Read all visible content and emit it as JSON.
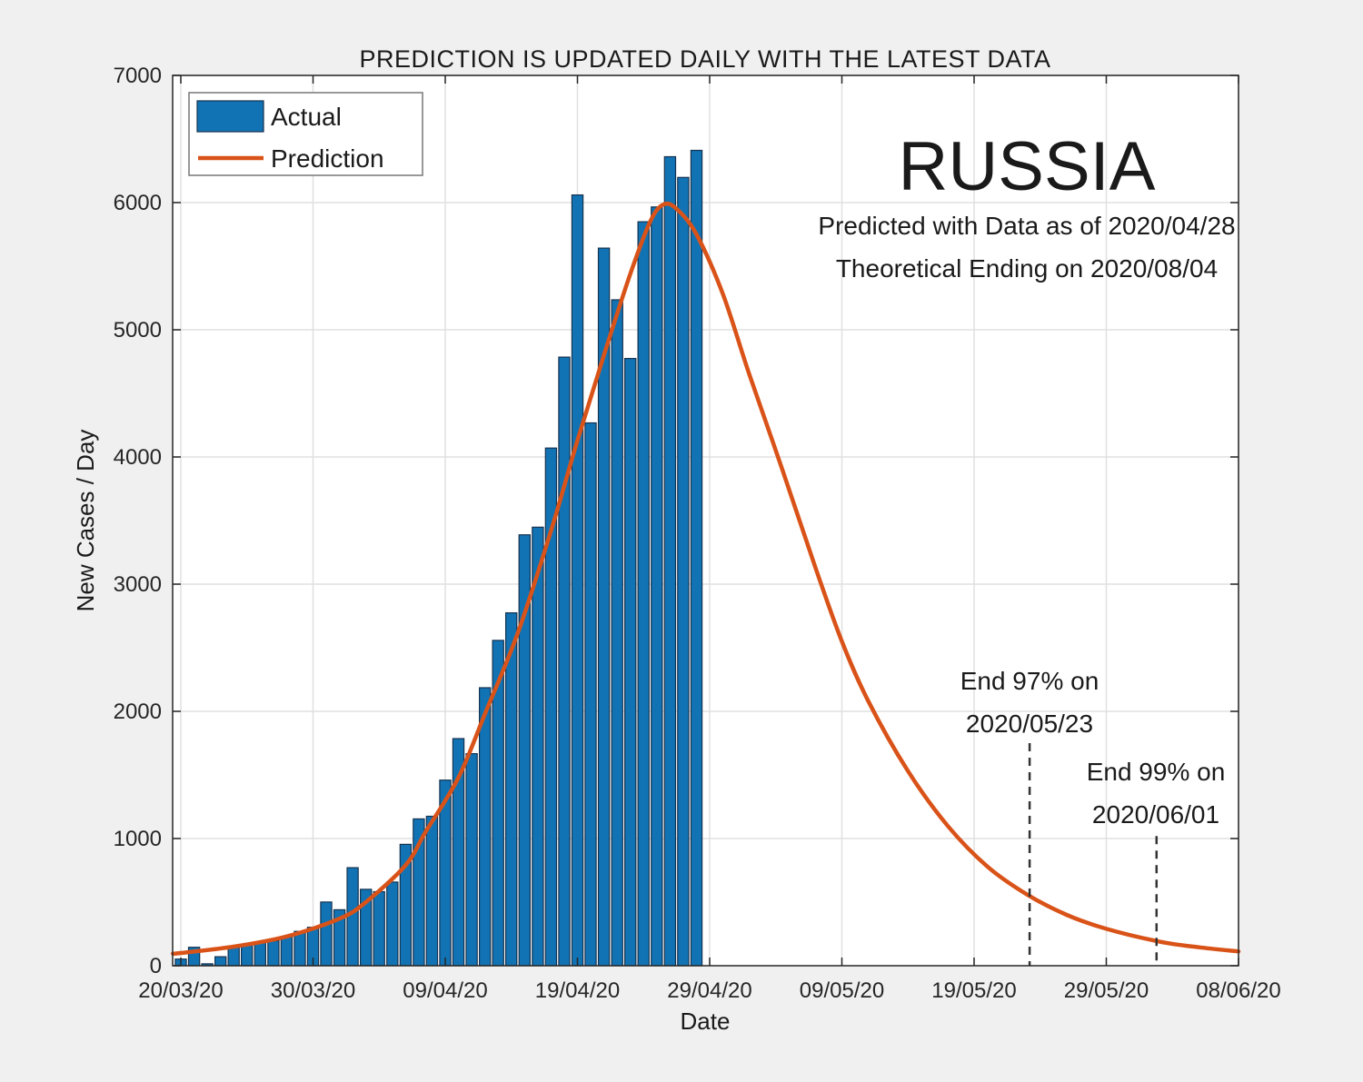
{
  "header": {
    "title": "PREDICTION IS UPDATED DAILY WITH THE LATEST DATA"
  },
  "country": {
    "name": "RUSSIA",
    "subtitle1": "Predicted with Data as of 2020/04/28",
    "subtitle2": "Theoretical Ending on 2020/08/04"
  },
  "legend": {
    "actual_label": "Actual",
    "prediction_label": "Prediction"
  },
  "axes": {
    "xlabel": "Date",
    "ylabel": "New Cases / Day",
    "x_tick_labels": [
      "20/03/20",
      "30/03/20",
      "09/04/20",
      "19/04/20",
      "29/04/20",
      "09/05/20",
      "19/05/20",
      "29/05/20",
      "08/06/20"
    ],
    "y_ticks": [
      0,
      1000,
      2000,
      3000,
      4000,
      5000,
      6000,
      7000
    ],
    "ylim": [
      0,
      7000
    ]
  },
  "annotations": [
    {
      "lines": [
        "End 97% on",
        "2020/05/23"
      ],
      "t_days": 64.2,
      "line_top_value": 1750
    },
    {
      "lines": [
        "End 99% on",
        "2020/06/01"
      ],
      "t_days": 73.8,
      "line_top_value": 1020
    }
  ],
  "colors": {
    "bar_fill": "#1173b4",
    "bar_edge": "#16324f",
    "prediction_line": "#d95319",
    "dashed_line": "#333333",
    "grid": "#e0e0e0",
    "axis": "#262626",
    "text": "#1a1a1a",
    "figure_bg": "#f0f0f0",
    "plot_bg": "#ffffff",
    "legend_border": "#777777"
  },
  "chart_data": {
    "type": "bar+line",
    "title": "PREDICTION IS UPDATED DAILY WITH THE LATEST DATA",
    "xlabel": "Date",
    "ylabel": "New Cases / Day",
    "ylim": [
      0,
      7000
    ],
    "x_range_dates": [
      "20/03/20",
      "08/06/20"
    ],
    "grid": true,
    "legend_position": "top-left",
    "bar_series": {
      "name": "Actual",
      "dates": [
        "20/03/20",
        "21/03/20",
        "22/03/20",
        "23/03/20",
        "24/03/20",
        "25/03/20",
        "26/03/20",
        "27/03/20",
        "28/03/20",
        "29/03/20",
        "30/03/20",
        "31/03/20",
        "01/04/20",
        "02/04/20",
        "03/04/20",
        "04/04/20",
        "05/04/20",
        "06/04/20",
        "07/04/20",
        "08/04/20",
        "09/04/20",
        "10/04/20",
        "11/04/20",
        "12/04/20",
        "13/04/20",
        "14/04/20",
        "15/04/20",
        "16/04/20",
        "17/04/20",
        "18/04/20",
        "19/04/20",
        "20/04/20",
        "21/04/20",
        "22/04/20",
        "23/04/20",
        "24/04/20",
        "25/04/20",
        "26/04/20",
        "27/04/20",
        "28/04/20"
      ],
      "values": [
        52,
        145,
        15,
        71,
        155,
        163,
        182,
        196,
        228,
        270,
        302,
        501,
        440,
        771,
        601,
        582,
        658,
        954,
        1154,
        1175,
        1459,
        1786,
        1667,
        2186,
        2558,
        2774,
        3388,
        3448,
        4070,
        4785,
        6060,
        4268,
        5642,
        5236,
        4774,
        5849,
        5966,
        6361,
        6198,
        6411
      ]
    },
    "prediction_series": {
      "name": "Prediction",
      "peak": {
        "value": 5985,
        "t_days_from_start": 36.5
      },
      "points_t_value": [
        [
          -0.6,
          95
        ],
        [
          0,
          100
        ],
        [
          4,
          150
        ],
        [
          8,
          230
        ],
        [
          12,
          370
        ],
        [
          14,
          500
        ],
        [
          17,
          790
        ],
        [
          18.5,
          1050
        ],
        [
          21,
          1480
        ],
        [
          23,
          1980
        ],
        [
          25.5,
          2620
        ],
        [
          28,
          3420
        ],
        [
          30,
          4130
        ],
        [
          32,
          4800
        ],
        [
          34,
          5440
        ],
        [
          35.5,
          5850
        ],
        [
          36.5,
          5985
        ],
        [
          37.5,
          5950
        ],
        [
          39,
          5750
        ],
        [
          41,
          5280
        ],
        [
          43,
          4650
        ],
        [
          45.5,
          3900
        ],
        [
          48,
          3130
        ],
        [
          50,
          2550
        ],
        [
          52,
          2080
        ],
        [
          55,
          1530
        ],
        [
          58,
          1100
        ],
        [
          61,
          780
        ],
        [
          64,
          560
        ],
        [
          67,
          400
        ],
        [
          70,
          290
        ],
        [
          74,
          190
        ],
        [
          77,
          145
        ],
        [
          80,
          112
        ]
      ]
    }
  }
}
